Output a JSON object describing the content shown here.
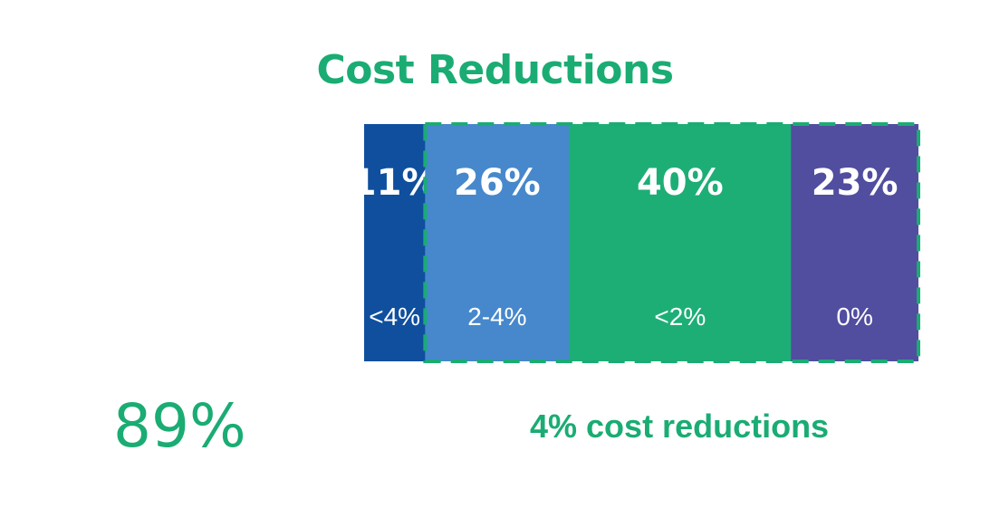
{
  "chart_data": {
    "type": "bar",
    "orientation": "stacked-horizontal-100",
    "title": "Cost Reductions",
    "categories": [
      "<4%",
      "2-4%",
      "<2%",
      "0%"
    ],
    "values": [
      11,
      26,
      40,
      23
    ],
    "value_labels": [
      "11%",
      "26%",
      "40%",
      "23%"
    ],
    "colors": [
      "#0f4f9e",
      "#4688cb",
      "#1dae76",
      "#514d9f"
    ],
    "highlight": {
      "style": "dashed-box",
      "covers_categories": [
        "2-4%",
        "<2%",
        "0%"
      ],
      "color": "#1aac73",
      "label": "4% cost reductions"
    },
    "callout": "89%"
  }
}
